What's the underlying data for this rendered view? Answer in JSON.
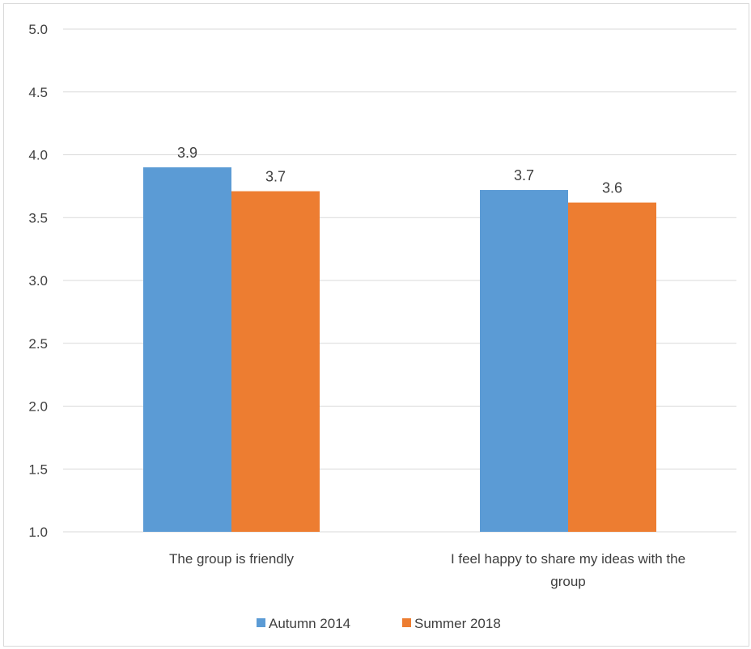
{
  "chart_data": {
    "type": "bar",
    "categories": [
      "The group is friendly",
      "I feel happy to share my ideas with the group"
    ],
    "category_lines": [
      [
        "The group is friendly"
      ],
      [
        "I feel happy to share my ideas with the",
        "group"
      ]
    ],
    "series": [
      {
        "name": "Autumn 2014",
        "color": "#5b9bd5",
        "values": [
          3.9,
          3.72
        ],
        "labels": [
          "3.9",
          "3.7"
        ]
      },
      {
        "name": "Summer 2018",
        "color": "#ed7d31",
        "values": [
          3.71,
          3.62
        ],
        "labels": [
          "3.7",
          "3.6"
        ]
      }
    ],
    "ylim": [
      1.0,
      5.0
    ],
    "yticks": [
      "1.0",
      "1.5",
      "2.0",
      "2.5",
      "3.0",
      "3.5",
      "4.0",
      "4.5",
      "5.0"
    ],
    "grid": true,
    "legend_position": "bottom",
    "title": "",
    "xlabel": "",
    "ylabel": ""
  }
}
